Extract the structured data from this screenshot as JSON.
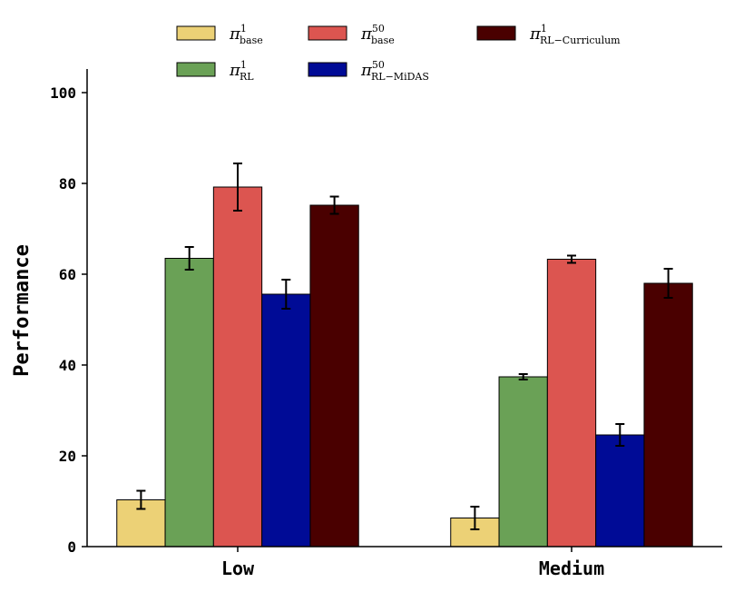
{
  "chart_data": {
    "type": "bar",
    "title": "",
    "xlabel": "",
    "ylabel": "Performance",
    "ylim": [
      0,
      105
    ],
    "yticks": [
      0,
      20,
      40,
      60,
      80,
      100
    ],
    "categories": [
      "Low",
      "Medium"
    ],
    "grid": false,
    "legend": "top",
    "series": [
      {
        "name": "π^1_base",
        "sym": "π",
        "sup": "1",
        "sub": "base",
        "color": "#ECD176",
        "values": [
          10.3,
          6.3
        ],
        "errors": [
          2.0,
          2.5
        ]
      },
      {
        "name": "π^1_RL",
        "sym": "π",
        "sup": "1",
        "sub": "RL",
        "color": "#6AA156",
        "values": [
          63.5,
          37.4
        ],
        "errors": [
          2.5,
          0.6
        ]
      },
      {
        "name": "π^50_base",
        "sym": "π",
        "sup": "50",
        "sub": "base",
        "color": "#DC5550",
        "values": [
          79.2,
          63.3
        ],
        "errors": [
          5.2,
          0.8
        ]
      },
      {
        "name": "π^50_RL−MiDAS",
        "sym": "π",
        "sup": "50",
        "sub": "RL−MiDAS",
        "color": "#000B96",
        "values": [
          55.6,
          24.6
        ],
        "errors": [
          3.2,
          2.4
        ]
      },
      {
        "name": "π^1_RL−Curriculum",
        "sym": "π",
        "sup": "1",
        "sub": "RL−Curriculum",
        "color": "#4A0000",
        "values": [
          75.2,
          58.0
        ],
        "errors": [
          1.9,
          3.2
        ]
      }
    ]
  }
}
